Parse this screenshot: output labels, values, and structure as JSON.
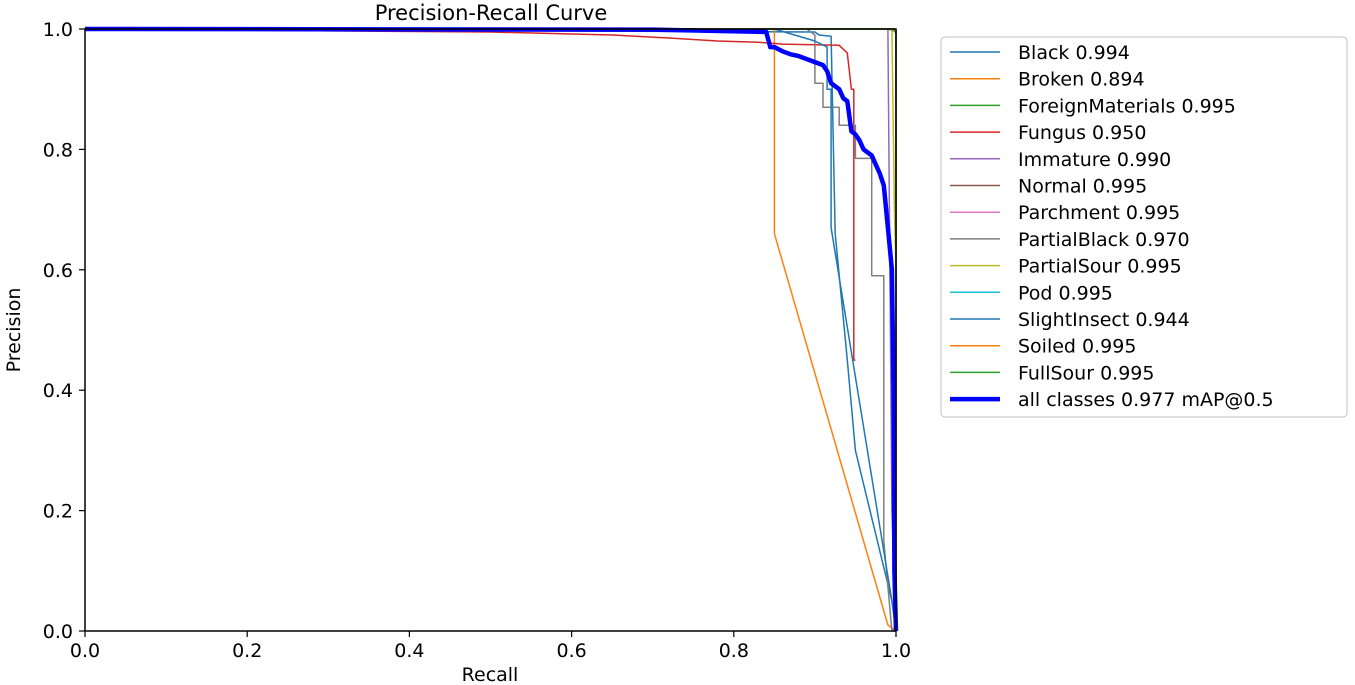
{
  "chart_data": {
    "type": "line",
    "title": "Precision-Recall Curve",
    "xlabel": "Recall",
    "ylabel": "Precision",
    "xlim": [
      0,
      1
    ],
    "ylim": [
      0,
      1
    ],
    "xticks": [
      "0.0",
      "0.2",
      "0.4",
      "0.6",
      "0.8",
      "1.0"
    ],
    "yticks": [
      "0.0",
      "0.2",
      "0.4",
      "0.6",
      "0.8",
      "1.0"
    ],
    "legend_position": "outside-right",
    "series": [
      {
        "name": "Black 0.994",
        "color": "#1f77b4",
        "width": 1.5,
        "x": [
          0,
          0.9,
          0.905,
          0.92,
          0.925,
          0.94,
          0.95,
          0.995,
          1.0
        ],
        "y": [
          1.0,
          0.995,
          0.99,
          0.988,
          0.66,
          0.45,
          0.3,
          0.05,
          0.0
        ]
      },
      {
        "name": "Broken 0.894",
        "color": "#ff7f0e",
        "width": 1.5,
        "x": [
          0,
          0.85,
          0.85,
          0.99,
          1.0
        ],
        "y": [
          1.0,
          1.0,
          0.66,
          0.01,
          0.0
        ]
      },
      {
        "name": "ForeignMaterials 0.995",
        "color": "#2ca02c",
        "width": 1.5,
        "x": [
          0,
          0.99,
          0.995,
          1.0,
          1.0
        ],
        "y": [
          1.0,
          1.0,
          0.998,
          0.995,
          0.0
        ]
      },
      {
        "name": "Fungus 0.950",
        "color": "#d62728",
        "width": 1.5,
        "x": [
          0,
          0.5,
          0.65,
          0.72,
          0.78,
          0.83,
          0.86,
          0.93,
          0.94,
          0.945,
          0.948,
          0.948,
          0.95
        ],
        "y": [
          1.0,
          0.995,
          0.99,
          0.985,
          0.98,
          0.978,
          0.975,
          0.973,
          0.96,
          0.9,
          0.9,
          0.45,
          0.45
        ]
      },
      {
        "name": "Immature 0.990",
        "color": "#9467bd",
        "width": 1.5,
        "x": [
          0,
          0.985,
          0.99,
          0.995,
          1.0
        ],
        "y": [
          1.0,
          1.0,
          1.0,
          0.2,
          0.0
        ]
      },
      {
        "name": "Normal 0.995",
        "color": "#8c564b",
        "width": 1.5,
        "x": [
          0,
          0.998,
          1.0,
          1.0
        ],
        "y": [
          1.0,
          1.0,
          0.99,
          0.0
        ]
      },
      {
        "name": "Parchment 0.995",
        "color": "#e377c2",
        "width": 1.5,
        "x": [
          0,
          0.997,
          1.0,
          1.0
        ],
        "y": [
          1.0,
          1.0,
          0.995,
          0.0
        ]
      },
      {
        "name": "PartialBlack 0.970",
        "color": "#7f7f7f",
        "width": 1.5,
        "x": [
          0,
          0.89,
          0.9,
          0.9,
          0.91,
          0.91,
          0.93,
          0.93,
          0.95,
          0.95,
          0.97,
          0.97,
          0.985,
          0.985,
          0.995,
          1.0
        ],
        "y": [
          1.0,
          1.0,
          0.99,
          0.91,
          0.91,
          0.87,
          0.87,
          0.84,
          0.84,
          0.785,
          0.785,
          0.59,
          0.59,
          0.15,
          0.0,
          0.0
        ]
      },
      {
        "name": "PartialSour 0.995",
        "color": "#bcbd22",
        "width": 1.5,
        "x": [
          0,
          0.995,
          0.998,
          1.0,
          1.0
        ],
        "y": [
          1.0,
          1.0,
          0.7,
          0.6,
          0.0
        ]
      },
      {
        "name": "Pod 0.995",
        "color": "#17becf",
        "width": 1.5,
        "x": [
          0,
          0.998,
          1.0,
          1.0
        ],
        "y": [
          1.0,
          1.0,
          0.998,
          0.0
        ]
      },
      {
        "name": "SlightInsect 0.944",
        "color": "#1f77b4",
        "width": 1.5,
        "x": [
          0,
          0.85,
          0.9,
          0.915,
          0.915,
          0.92,
          0.92,
          0.995,
          1.0
        ],
        "y": [
          1.0,
          1.0,
          0.98,
          0.97,
          0.9,
          0.9,
          0.67,
          0.05,
          0.0
        ]
      },
      {
        "name": "Soiled 0.995",
        "color": "#ff7f0e",
        "width": 1.5,
        "x": [
          0,
          0.998,
          1.0,
          1.0
        ],
        "y": [
          1.0,
          1.0,
          0.996,
          0.0
        ]
      },
      {
        "name": "FullSour 0.995",
        "color": "#2ca02c",
        "width": 1.5,
        "x": [
          0,
          0.998,
          1.0,
          1.0
        ],
        "y": [
          1.0,
          1.0,
          0.997,
          0.0
        ]
      },
      {
        "name": "all classes 0.977 mAP@0.5",
        "color": "#0000ff",
        "width": 4.5,
        "x": [
          0,
          0.7,
          0.84,
          0.845,
          0.85,
          0.86,
          0.87,
          0.88,
          0.89,
          0.9,
          0.91,
          0.915,
          0.92,
          0.93,
          0.935,
          0.94,
          0.945,
          0.95,
          0.955,
          0.96,
          0.97,
          0.98,
          0.985,
          0.99,
          0.995,
          0.997,
          0.998,
          1.0
        ],
        "y": [
          1.0,
          0.999,
          0.995,
          0.97,
          0.97,
          0.963,
          0.958,
          0.955,
          0.95,
          0.945,
          0.94,
          0.93,
          0.91,
          0.9,
          0.885,
          0.88,
          0.83,
          0.825,
          0.815,
          0.8,
          0.79,
          0.76,
          0.74,
          0.67,
          0.6,
          0.4,
          0.1,
          0.0
        ]
      }
    ]
  }
}
